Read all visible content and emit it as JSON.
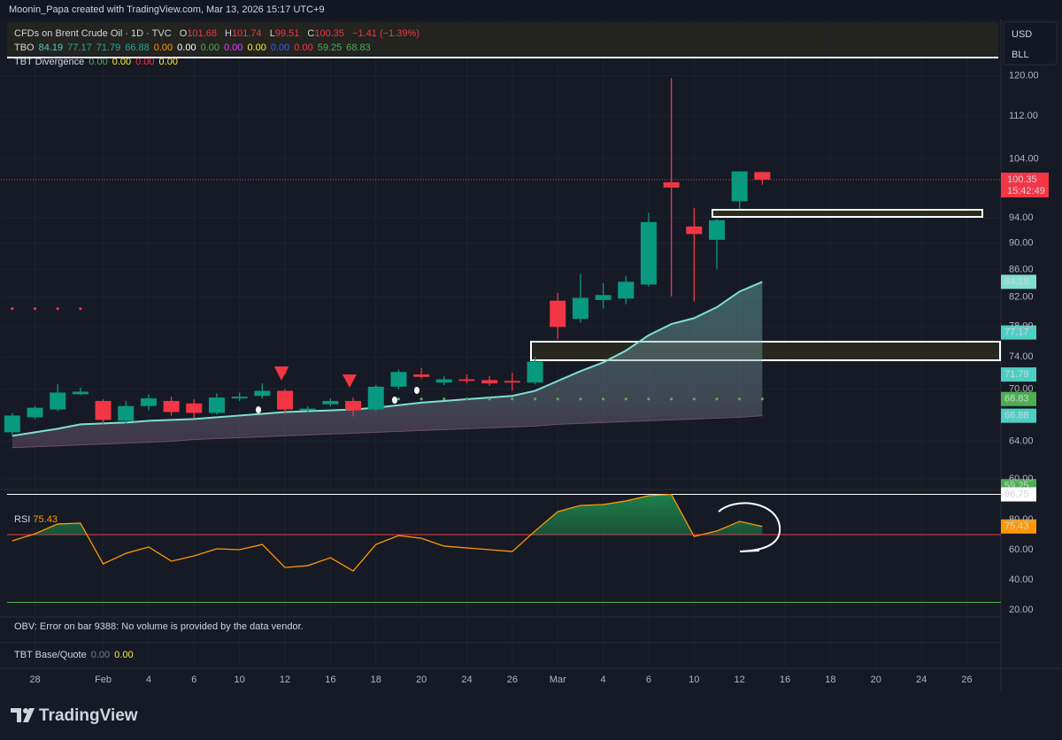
{
  "header": {
    "credit": "Moonin_Papa created with TradingView.com, Mar 13, 2026 15:17 UTC+9"
  },
  "axis_box": {
    "currency": "USD",
    "unit": "BLL"
  },
  "countdown": "15:42:49",
  "branding": "TradingView",
  "indicators": {
    "tbo": {
      "label": "TBO",
      "values": [
        {
          "text": "84.19",
          "color": "#4dd0c4"
        },
        {
          "text": "77.17",
          "color": "#26a69a"
        },
        {
          "text": "71.79",
          "color": "#26a69a"
        },
        {
          "text": "66.88",
          "color": "#26a69a"
        },
        {
          "text": "0.00",
          "color": "#ff9800"
        },
        {
          "text": "0.00",
          "color": "#ffffff"
        },
        {
          "text": "0.00",
          "color": "#4caf50"
        },
        {
          "text": "0.00",
          "color": "#e040fb"
        },
        {
          "text": "0.00",
          "color": "#ffeb3b"
        },
        {
          "text": "0.00",
          "color": "#2962ff"
        },
        {
          "text": "0.00",
          "color": "#f23645"
        },
        {
          "text": "59.25",
          "color": "#4caf50"
        },
        {
          "text": "68.83",
          "color": "#4caf50"
        }
      ]
    },
    "tbt_divergence": {
      "label": "TBT Divergence",
      "values": [
        {
          "text": "0.00",
          "color": "#4caf50"
        },
        {
          "text": "0.00",
          "color": "#ffeb3b"
        },
        {
          "text": "0.00",
          "color": "#f23645"
        },
        {
          "text": "0.00",
          "color": "#ffeb3b"
        }
      ]
    },
    "obv_error": "OBV: Error on bar 9388: No volume is provided by the data vendor.",
    "tbt_base_quote": {
      "label": "TBT Base/Quote",
      "values": [
        {
          "text": "0.00",
          "color": "#787b86"
        },
        {
          "text": "0.00",
          "color": "#ffeb3b"
        }
      ]
    }
  },
  "chart_data": [
    {
      "type": "candlestick",
      "title": "CFDs on Brent Crude Oil · 1D · TVC",
      "ohlc_labels": [
        "O",
        "H",
        "L",
        "C"
      ],
      "change": "−1.41 (−1.39%)",
      "log_scale": true,
      "grid": true,
      "up_color": "#089981",
      "down_color": "#f23645",
      "categories": [
        null,
        "28",
        null,
        null,
        "Feb",
        null,
        "4",
        null,
        "6",
        null,
        "10",
        null,
        "12",
        null,
        "16",
        null,
        "18",
        null,
        "20",
        null,
        "24",
        null,
        "26",
        null,
        "Mar",
        null,
        "4",
        null,
        "6",
        null,
        "10",
        null,
        "12",
        null,
        "16",
        null,
        "18",
        null,
        "20",
        null,
        "24",
        null,
        "26",
        null
      ],
      "open": [
        65.0,
        66.7,
        67.6,
        69.4,
        68.6,
        66.3,
        68.0,
        68.6,
        68.3,
        67.2,
        68.9,
        69.2,
        69.8,
        67.5,
        68.2,
        68.6,
        67.6,
        70.3,
        71.8,
        70.8,
        71.2,
        71.1,
        71.0,
        70.8,
        81.5,
        79.0,
        81.6,
        81.8,
        83.8,
        99.9,
        92.6,
        90.5,
        96.7,
        101.68,
        null,
        null,
        null,
        null,
        null,
        null,
        null,
        null,
        null,
        null
      ],
      "high": [
        67.2,
        68.0,
        70.6,
        70.2,
        68.8,
        68.6,
        69.4,
        69.1,
        68.8,
        69.5,
        69.6,
        70.7,
        70.0,
        68.0,
        68.9,
        69.0,
        70.5,
        72.4,
        72.6,
        71.6,
        71.8,
        71.6,
        72.0,
        74.0,
        82.6,
        85.3,
        84.0,
        85.0,
        94.8,
        119.5,
        95.6,
        93.8,
        101.8,
        101.74,
        null,
        null,
        null,
        null,
        null,
        null,
        null,
        null,
        null,
        null
      ],
      "low": [
        64.6,
        66.5,
        67.4,
        69.3,
        65.9,
        66.0,
        67.5,
        66.9,
        66.6,
        67.0,
        68.6,
        68.9,
        67.1,
        67.3,
        68.0,
        66.8,
        67.4,
        70.0,
        71.3,
        70.5,
        70.7,
        70.4,
        69.8,
        70.6,
        76.3,
        78.5,
        80.4,
        81.0,
        83.5,
        82.1,
        81.4,
        86.1,
        95.4,
        99.51,
        null,
        null,
        null,
        null,
        null,
        null,
        null,
        null,
        null,
        null
      ],
      "close": [
        66.9,
        67.8,
        69.6,
        69.7,
        66.4,
        68.0,
        68.9,
        67.3,
        67.2,
        69.0,
        69.1,
        69.8,
        67.6,
        67.7,
        68.6,
        67.5,
        70.3,
        72.1,
        71.5,
        71.2,
        71.0,
        70.7,
        70.8,
        73.4,
        77.9,
        81.9,
        82.3,
        84.2,
        93.3,
        99.0,
        91.4,
        93.6,
        101.8,
        100.35,
        null,
        null,
        null,
        null,
        null,
        null,
        null,
        null,
        null,
        null
      ],
      "series": [
        {
          "color": "#7fe0d0",
          "values": [
            64.6,
            65.0,
            65.4,
            65.9,
            66.0,
            66.1,
            66.3,
            66.4,
            66.5,
            66.7,
            66.9,
            67.1,
            67.3,
            67.4,
            67.5,
            67.6,
            67.8,
            68.1,
            68.4,
            68.6,
            68.8,
            69.0,
            69.2,
            69.8,
            71.0,
            72.2,
            73.3,
            74.8,
            76.8,
            78.3,
            79.1,
            80.6,
            82.8,
            84.19,
            null,
            null,
            null,
            null,
            null,
            null,
            null,
            null,
            null,
            null
          ]
        },
        {
          "color": "#6b4e6e",
          "values": [
            63.3,
            63.4,
            63.5,
            63.6,
            63.7,
            63.8,
            63.9,
            64.0,
            64.2,
            64.3,
            64.4,
            64.5,
            64.6,
            64.7,
            64.8,
            64.9,
            65.0,
            65.1,
            65.2,
            65.3,
            65.4,
            65.5,
            65.6,
            65.7,
            65.9,
            66.0,
            66.1,
            66.2,
            66.3,
            66.4,
            66.5,
            66.6,
            66.7,
            66.88,
            null,
            null,
            null,
            null,
            null,
            null,
            null,
            null,
            null,
            null
          ]
        },
        {
          "color": "#f23645",
          "dots": true,
          "values": [
            80.4,
            80.4,
            80.4,
            80.4,
            null,
            null,
            null,
            null,
            null,
            null,
            null,
            null,
            null,
            null,
            null,
            null,
            null,
            null,
            null,
            null,
            null,
            null,
            null,
            null,
            null,
            null,
            null,
            null,
            null,
            null,
            null,
            null,
            null,
            null,
            null,
            null,
            null,
            null,
            null,
            null,
            null,
            null,
            null,
            null
          ]
        },
        {
          "color": "#4caf50",
          "dots": true,
          "values": [
            null,
            null,
            null,
            null,
            null,
            null,
            null,
            null,
            null,
            null,
            null,
            null,
            null,
            null,
            null,
            null,
            68.83,
            68.83,
            68.83,
            68.83,
            68.83,
            68.83,
            68.83,
            68.83,
            68.83,
            68.83,
            68.83,
            68.83,
            68.83,
            68.83,
            68.83,
            68.83,
            68.83,
            68.83,
            null,
            null,
            null,
            null,
            null,
            null,
            null,
            null,
            null,
            null
          ]
        }
      ],
      "price_tags": [
        {
          "value": 77.17,
          "color": "#4dd0c4"
        },
        {
          "value": 71.79,
          "color": "#4dd0c4"
        },
        {
          "value": 59.25,
          "color": "#4caf50"
        }
      ],
      "ylim": [
        59,
        124
      ],
      "yticks": [
        {
          "value": 120,
          "label": "120.00"
        },
        {
          "value": 112,
          "label": "112.00"
        },
        {
          "value": 104,
          "label": "104.00"
        },
        {
          "value": 94,
          "label": "94.00"
        },
        {
          "value": 90,
          "label": "90.00"
        },
        {
          "value": 86,
          "label": "86.00"
        },
        {
          "value": 82,
          "label": "82.00"
        },
        {
          "value": 78,
          "label": "78.00"
        },
        {
          "value": 74,
          "label": "74.00"
        },
        {
          "value": 70,
          "label": "70.00"
        },
        {
          "value": 64,
          "label": "64.00"
        },
        {
          "value": 60,
          "label": "60.00"
        }
      ]
    },
    {
      "type": "line",
      "name": "RSI",
      "color": "#ff9800",
      "values": [
        65.9,
        70.6,
        77.1,
        77.6,
        50.6,
        57.6,
        61.8,
        52.4,
        55.9,
        60.6,
        60.0,
        63.5,
        48.2,
        49.4,
        54.7,
        45.9,
        63.5,
        69.4,
        67.6,
        62.4,
        61.2,
        60.0,
        58.8,
        72.4,
        85.3,
        89.4,
        90.0,
        92.4,
        95.9,
        96.75,
        68.8,
        72.4,
        78.8,
        75.43,
        null,
        null,
        null,
        null,
        null,
        null,
        null,
        null,
        null,
        null
      ],
      "hlines": [
        {
          "value": 96.75,
          "color": "#ffffff"
        },
        {
          "value": 70,
          "color": "#f23645",
          "fill": "#1e8c4e"
        },
        {
          "value": 25,
          "color": "#4caf50"
        }
      ],
      "ylim": [
        16.5,
        100
      ],
      "yticks": [
        {
          "value": 80,
          "label": "80.00"
        },
        {
          "value": 60,
          "label": "60.00"
        },
        {
          "value": 40,
          "label": "40.00"
        },
        {
          "value": 20,
          "label": "20.00"
        }
      ]
    }
  ]
}
